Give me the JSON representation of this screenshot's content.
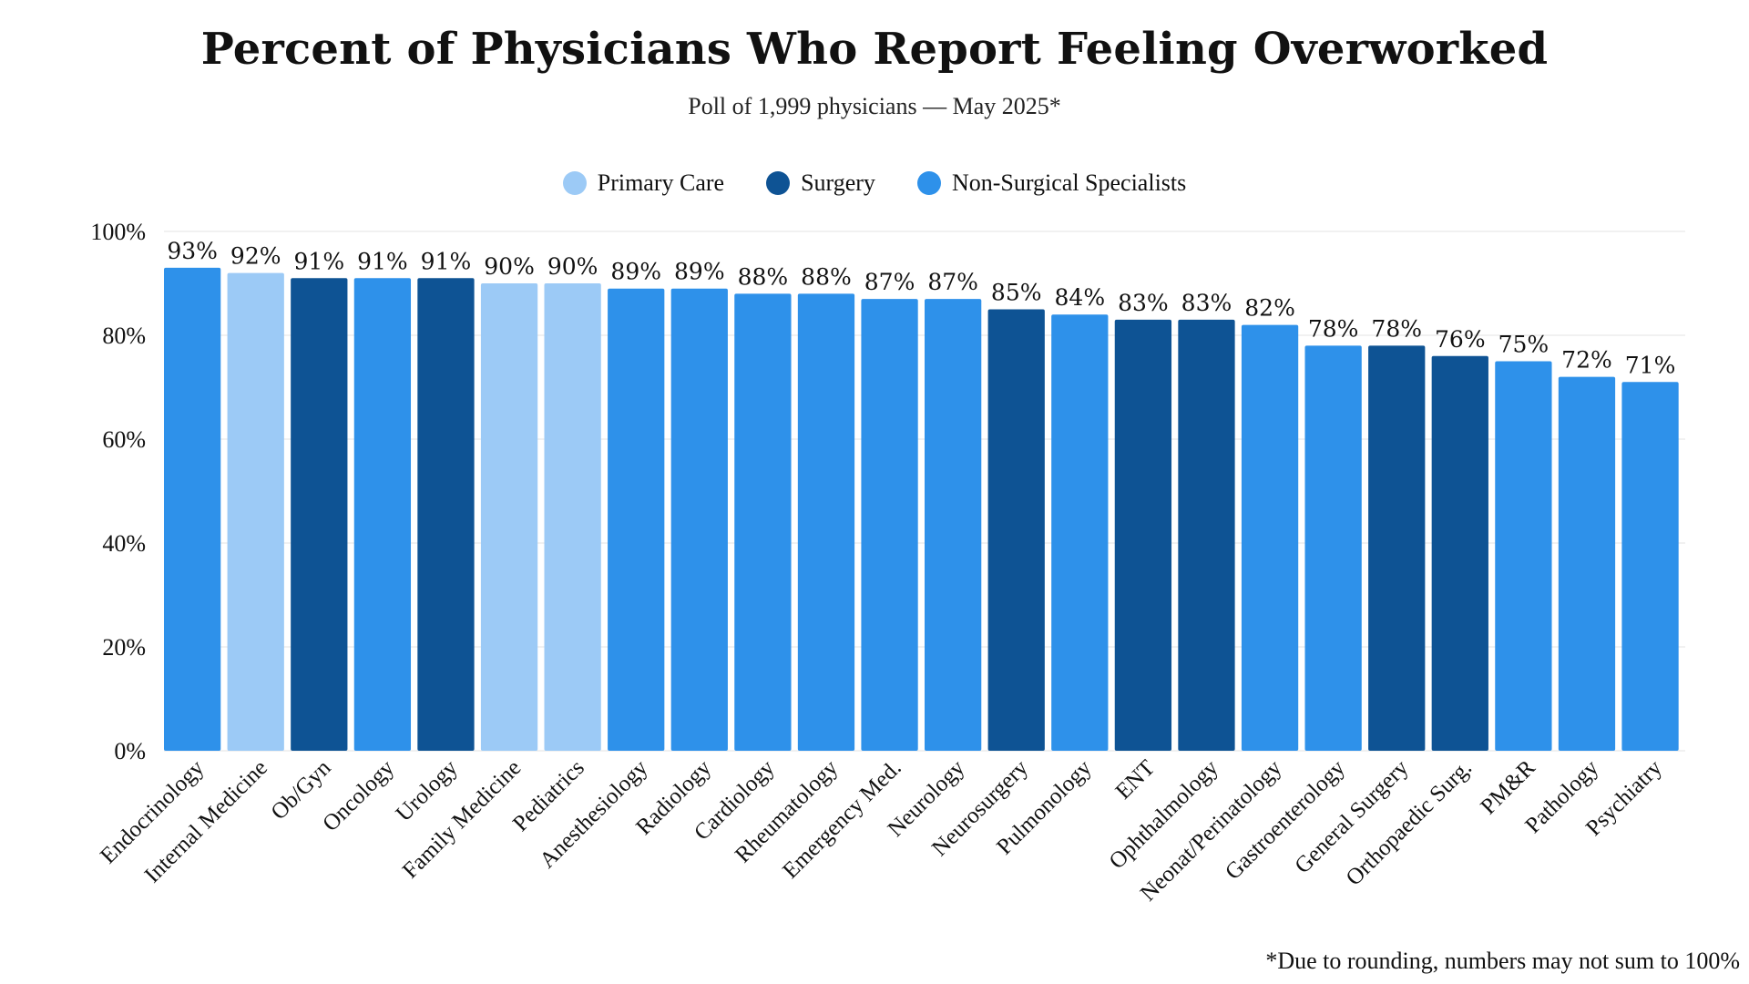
{
  "chart_data": {
    "type": "bar",
    "title": "Percent of Physicians Who Report Feeling Overworked",
    "subtitle": "Poll of 1,999 physicians — May 2025*",
    "footnote": "*Due to rounding, numbers may not sum to 100%",
    "xlabel": "",
    "ylabel": "",
    "ylim": [
      0,
      100
    ],
    "yticks": [
      "0%",
      "20%",
      "40%",
      "60%",
      "80%",
      "100%"
    ],
    "grid": true,
    "legend_position": "top-center",
    "groups": [
      {
        "name": "Primary Care",
        "color": "#9ccaf6"
      },
      {
        "name": "Surgery",
        "color": "#0e5394"
      },
      {
        "name": "Non-Surgical Specialists",
        "color": "#2e91ea"
      }
    ],
    "categories": [
      "Endocrinology",
      "Internal Medicine",
      "Ob/Gyn",
      "Oncology",
      "Urology",
      "Family Medicine",
      "Pediatrics",
      "Anesthesiology",
      "Radiology",
      "Cardiology",
      "Rheumatology",
      "Emergency Med.",
      "Neurology",
      "Neurosurgery",
      "Pulmonology",
      "ENT",
      "Ophthalmology",
      "Neonat/Perinatology",
      "Gastroenterology",
      "General Surgery",
      "Orthopaedic Surg.",
      "PM&R",
      "Pathology",
      "Psychiatry"
    ],
    "values": [
      93,
      92,
      91,
      91,
      91,
      90,
      90,
      89,
      89,
      88,
      88,
      87,
      87,
      85,
      84,
      83,
      83,
      82,
      78,
      78,
      76,
      75,
      72,
      71
    ],
    "value_labels": [
      "93%",
      "92%",
      "91%",
      "91%",
      "91%",
      "90%",
      "90%",
      "89%",
      "89%",
      "88%",
      "88%",
      "87%",
      "87%",
      "85%",
      "84%",
      "83%",
      "83%",
      "82%",
      "78%",
      "78%",
      "76%",
      "75%",
      "72%",
      "71%"
    ],
    "bar_groups": [
      "Non-Surgical Specialists",
      "Primary Care",
      "Surgery",
      "Non-Surgical Specialists",
      "Surgery",
      "Primary Care",
      "Primary Care",
      "Non-Surgical Specialists",
      "Non-Surgical Specialists",
      "Non-Surgical Specialists",
      "Non-Surgical Specialists",
      "Non-Surgical Specialists",
      "Non-Surgical Specialists",
      "Surgery",
      "Non-Surgical Specialists",
      "Surgery",
      "Surgery",
      "Non-Surgical Specialists",
      "Non-Surgical Specialists",
      "Surgery",
      "Surgery",
      "Non-Surgical Specialists",
      "Non-Surgical Specialists",
      "Non-Surgical Specialists"
    ]
  }
}
